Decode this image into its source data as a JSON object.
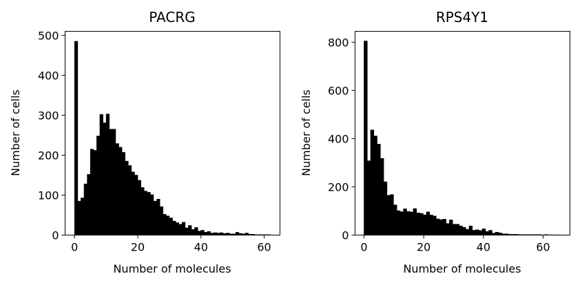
{
  "chart_data": [
    {
      "type": "bar",
      "title": "PACRG",
      "xlabel": "Number of molecules",
      "ylabel": "Number of cells",
      "xlim": [
        -3,
        65
      ],
      "ylim": [
        0,
        510
      ],
      "xticks": [
        0,
        20,
        40,
        60
      ],
      "yticks": [
        0,
        100,
        200,
        300,
        400,
        500
      ],
      "grid": false,
      "bin_edges": [
        0,
        1,
        2,
        3,
        4,
        5,
        6,
        7,
        8,
        9,
        10,
        11,
        12,
        13,
        14,
        15,
        16,
        17,
        18,
        19,
        20,
        21,
        22,
        23,
        24,
        25,
        26,
        27,
        28,
        29,
        30,
        31,
        32,
        33,
        34,
        35,
        36,
        37,
        38,
        39,
        40,
        41,
        42,
        43,
        44,
        45,
        46,
        47,
        48,
        49,
        50,
        51,
        52,
        53,
        54,
        55,
        56,
        57,
        58,
        59,
        60,
        61,
        62
      ],
      "values": [
        485,
        85,
        93,
        128,
        152,
        215,
        212,
        248,
        302,
        281,
        303,
        265,
        265,
        229,
        220,
        207,
        185,
        174,
        158,
        150,
        137,
        119,
        110,
        107,
        101,
        85,
        90,
        71,
        52,
        48,
        43,
        35,
        31,
        27,
        32,
        18,
        24,
        14,
        19,
        10,
        12,
        7,
        9,
        5,
        6,
        5,
        6,
        4,
        5,
        3,
        3,
        7,
        4,
        3,
        5,
        2,
        2,
        1,
        1,
        1,
        1,
        1
      ]
    },
    {
      "type": "bar",
      "title": "RPS4Y1",
      "xlabel": "Number of molecules",
      "ylabel": "Number of cells",
      "xlim": [
        -3,
        69
      ],
      "ylim": [
        0,
        845
      ],
      "xticks": [
        0,
        20,
        40,
        60
      ],
      "yticks": [
        0,
        200,
        400,
        600,
        800
      ],
      "grid": false,
      "bin_edges": [
        0,
        1.1,
        2.2,
        3.3,
        4.4,
        5.5,
        6.6,
        7.7,
        8.8,
        9.9,
        11,
        12.1,
        13.2,
        14.3,
        15.4,
        16.5,
        17.6,
        18.7,
        19.8,
        20.9,
        22,
        23.1,
        24.2,
        25.3,
        26.4,
        27.5,
        28.6,
        29.7,
        30.8,
        31.9,
        33,
        34.1,
        35.2,
        36.3,
        37.4,
        38.5,
        39.6,
        40.7,
        41.8,
        42.9,
        44,
        45.1,
        46.2,
        47.3,
        48.4,
        49.5,
        50.6,
        51.7,
        52.8,
        53.9,
        55,
        56.1,
        57.2,
        58.3,
        59.4,
        60.5,
        61.6,
        62.7,
        63.8,
        64.9,
        66
      ],
      "values": [
        805,
        308,
        436,
        411,
        377,
        318,
        221,
        165,
        168,
        125,
        101,
        97,
        109,
        98,
        96,
        110,
        92,
        90,
        84,
        96,
        83,
        79,
        67,
        64,
        66,
        48,
        63,
        45,
        45,
        38,
        32,
        24,
        38,
        20,
        22,
        19,
        26,
        15,
        20,
        8,
        12,
        9,
        5,
        5,
        3,
        3,
        3,
        2,
        2,
        2,
        2,
        2,
        2,
        2,
        1,
        2,
        1,
        1,
        1,
        1
      ]
    }
  ]
}
